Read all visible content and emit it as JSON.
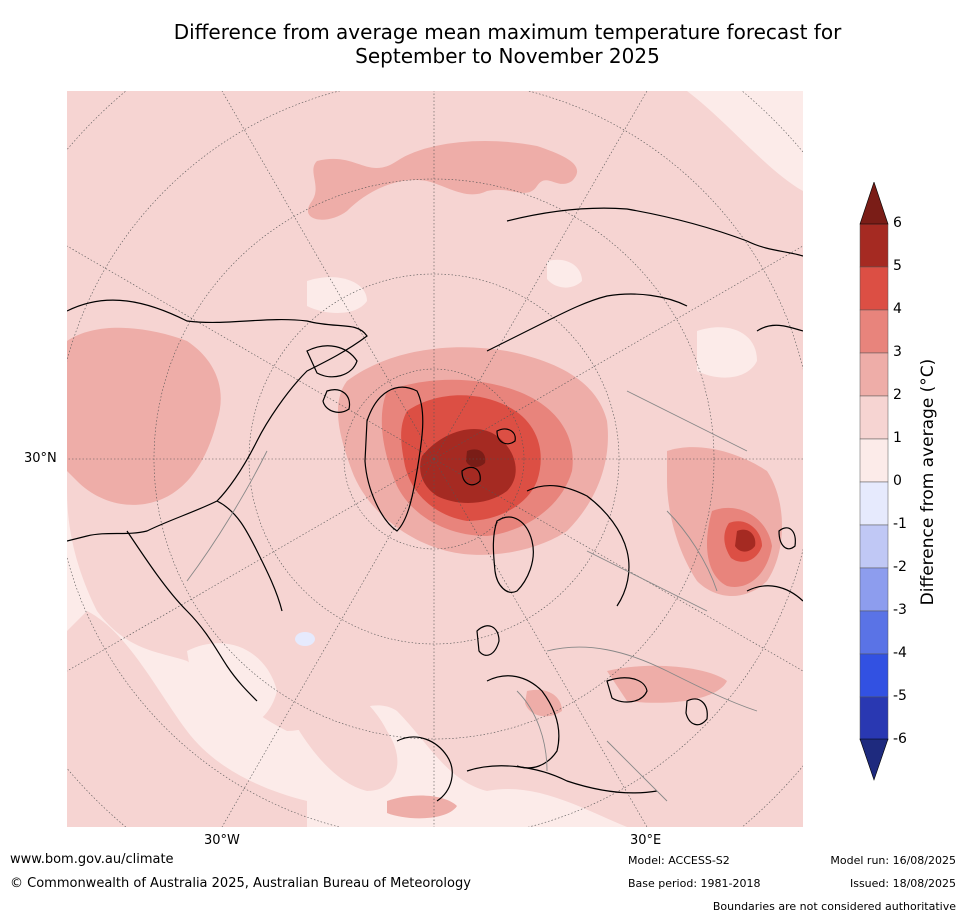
{
  "title_line1": "Difference from average mean maximum temperature forecast for",
  "title_line2": "September to November 2025",
  "map": {
    "lat_label": "30°N",
    "lon_label_w": "30°W",
    "lon_label_e": "30°E",
    "projection": "north-polar-stereographic"
  },
  "colorbar": {
    "title": "Difference from average (°C)",
    "ticks": [
      "6",
      "5",
      "4",
      "3",
      "2",
      "1",
      "0",
      "-1",
      "-2",
      "-3",
      "-4",
      "-5",
      "-6"
    ],
    "colors": [
      "#a52a22",
      "#dc4f44",
      "#e8847c",
      "#eeada8",
      "#f6d4d2",
      "#fcebe9",
      "#e6eafd",
      "#c0c8f5",
      "#8d9dee",
      "#5a73e6",
      "#3251e2",
      "#2938b2"
    ],
    "over_color": "#7a1d17",
    "under_color": "#1e2a7e"
  },
  "footer": {
    "url": "www.bom.gov.au/climate",
    "copyright": "© Commonwealth of Australia 2025, Australian Bureau of Meteorology",
    "model": "Model: ACCESS-S2",
    "base_period": "Base period: 1981-2018",
    "model_run": "Model run: 16/08/2025",
    "issued": "Issued: 18/08/2025",
    "disclaimer": "Boundaries are not considered authoritative"
  }
}
